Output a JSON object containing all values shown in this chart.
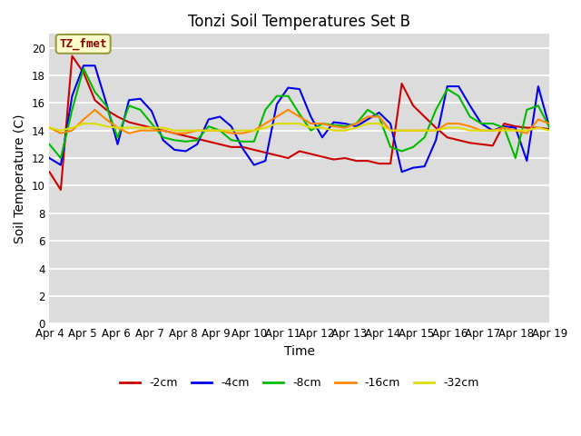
{
  "title": "Tonzi Soil Temperatures Set B",
  "xlabel": "Time",
  "ylabel": "Soil Temperature (C)",
  "annotation_text": "TZ_fmet",
  "annotation_color": "#8B0000",
  "annotation_bg": "#FFFFCC",
  "annotation_border": "#999944",
  "ylim": [
    0,
    21
  ],
  "yticks": [
    0,
    2,
    4,
    6,
    8,
    10,
    12,
    14,
    16,
    18,
    20
  ],
  "xtick_labels": [
    "Apr 4",
    "Apr 5",
    "Apr 6",
    "Apr 7",
    "Apr 8",
    "Apr 9",
    "Apr 10",
    "Apr 11",
    "Apr 12",
    "Apr 13",
    "Apr 14",
    "Apr 15",
    "Apr 16",
    "Apr 17",
    "Apr 18",
    "Apr 19"
  ],
  "colors": {
    "-2cm": "#CC0000",
    "-4cm": "#0000EE",
    "-8cm": "#00BB00",
    "-16cm": "#FF8800",
    "-32cm": "#DDDD00"
  },
  "legend_labels": [
    "-2cm",
    "-4cm",
    "-8cm",
    "-16cm",
    "-32cm"
  ],
  "bg_color": "#DCDCDC",
  "plot_bg": "#DCDCDC",
  "fig_bg": "#FFFFFF",
  "series": {
    "-2cm": [
      11.0,
      9.7,
      19.4,
      18.2,
      16.2,
      15.5,
      15.0,
      14.6,
      14.4,
      14.2,
      14.0,
      13.8,
      13.6,
      13.4,
      13.2,
      13.0,
      12.8,
      12.8,
      12.6,
      12.4,
      12.2,
      12.0,
      12.5,
      12.3,
      12.1,
      11.9,
      12.0,
      11.8,
      11.8,
      11.6,
      11.6,
      17.4,
      15.8,
      15.0,
      14.2,
      13.5,
      13.3,
      13.1,
      13.0,
      12.9,
      14.5,
      14.3,
      14.2,
      14.2,
      14.1
    ],
    "-4cm": [
      12.0,
      11.5,
      16.5,
      18.7,
      18.7,
      16.0,
      13.0,
      16.2,
      16.3,
      15.4,
      13.3,
      12.6,
      12.5,
      13.0,
      14.8,
      15.0,
      14.3,
      12.7,
      11.5,
      11.8,
      15.9,
      17.1,
      17.0,
      15.0,
      13.5,
      14.6,
      14.5,
      14.3,
      14.8,
      15.3,
      14.5,
      11.0,
      11.3,
      11.4,
      13.3,
      17.2,
      17.2,
      15.8,
      14.5,
      14.0,
      14.3,
      14.2,
      11.8,
      17.2,
      14.2
    ],
    "-8cm": [
      13.0,
      12.0,
      15.5,
      18.5,
      16.8,
      15.8,
      13.5,
      15.8,
      15.5,
      14.5,
      13.5,
      13.3,
      13.2,
      13.3,
      14.3,
      14.0,
      13.3,
      13.2,
      13.2,
      15.5,
      16.5,
      16.5,
      15.2,
      14.0,
      14.5,
      14.4,
      14.3,
      14.5,
      15.5,
      15.0,
      12.8,
      12.5,
      12.8,
      13.5,
      15.5,
      17.0,
      16.5,
      15.0,
      14.5,
      14.5,
      14.2,
      12.0,
      15.5,
      15.8,
      14.2
    ],
    "-16cm": [
      14.2,
      13.8,
      14.0,
      14.8,
      15.5,
      14.8,
      14.2,
      13.8,
      14.0,
      14.0,
      14.0,
      13.8,
      13.8,
      14.0,
      14.0,
      14.0,
      13.8,
      13.8,
      14.0,
      14.5,
      15.0,
      15.5,
      15.0,
      14.5,
      14.5,
      14.3,
      14.2,
      14.5,
      15.0,
      15.0,
      14.0,
      14.0,
      14.0,
      14.0,
      14.0,
      14.5,
      14.5,
      14.3,
      14.0,
      14.0,
      14.2,
      14.0,
      13.8,
      14.8,
      14.5
    ],
    "-32cm": [
      14.2,
      14.0,
      14.2,
      14.5,
      14.5,
      14.3,
      14.2,
      14.2,
      14.2,
      14.2,
      14.2,
      14.0,
      14.0,
      14.0,
      14.0,
      14.0,
      14.0,
      14.0,
      14.0,
      14.2,
      14.5,
      14.5,
      14.5,
      14.2,
      14.2,
      14.0,
      14.0,
      14.2,
      14.5,
      14.5,
      14.0,
      14.0,
      14.0,
      14.0,
      14.0,
      14.2,
      14.2,
      14.0,
      14.0,
      14.0,
      14.0,
      14.0,
      14.0,
      14.2,
      14.0
    ]
  },
  "n_points": 45,
  "figsize": [
    6.4,
    4.8
  ],
  "dpi": 100
}
